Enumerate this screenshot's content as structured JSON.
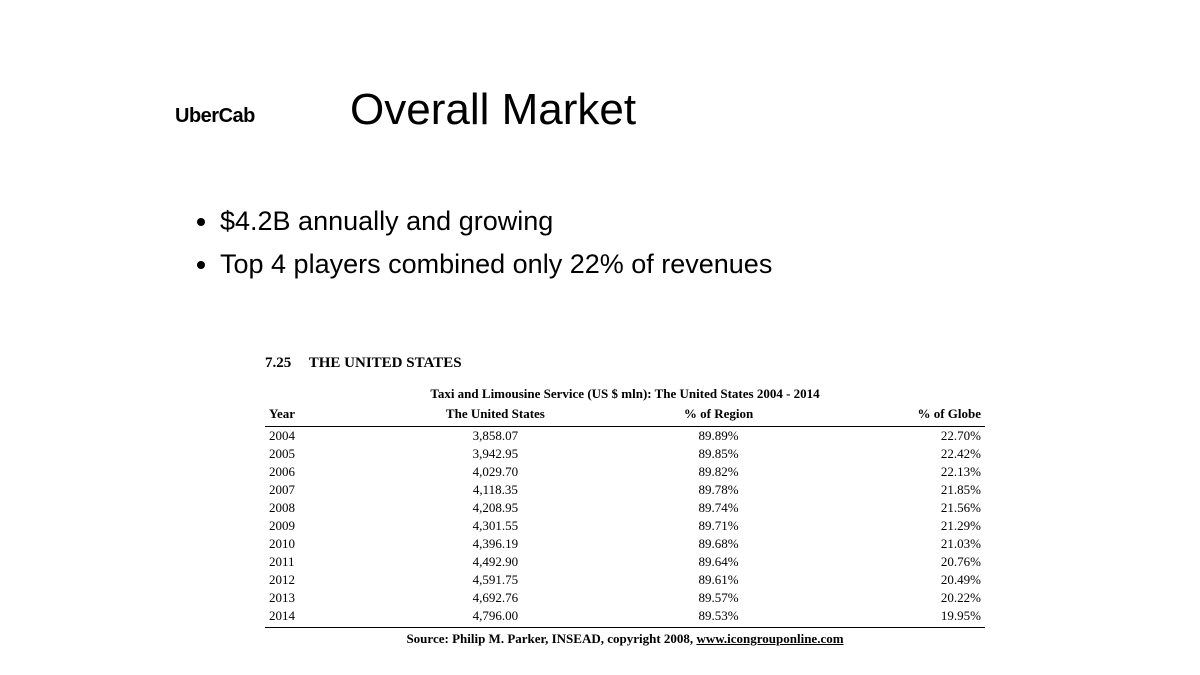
{
  "brand": "UberCab",
  "title": "Overall Market",
  "bullets": [
    "$4.2B annually and growing",
    "Top 4 players combined only 22% of revenues"
  ],
  "table": {
    "section_number": "7.25",
    "section_label": "THE UNITED STATES",
    "caption": "Taxi and Limousine Service (US $ mln): The United States 2004 - 2014",
    "columns": [
      "Year",
      "The United States",
      "% of Region",
      "% of Globe"
    ],
    "rows": [
      [
        "2004",
        "3,858.07",
        "89.89%",
        "22.70%"
      ],
      [
        "2005",
        "3,942.95",
        "89.85%",
        "22.42%"
      ],
      [
        "2006",
        "4,029.70",
        "89.82%",
        "22.13%"
      ],
      [
        "2007",
        "4,118.35",
        "89.78%",
        "21.85%"
      ],
      [
        "2008",
        "4,208.95",
        "89.74%",
        "21.56%"
      ],
      [
        "2009",
        "4,301.55",
        "89.71%",
        "21.29%"
      ],
      [
        "2010",
        "4,396.19",
        "89.68%",
        "21.03%"
      ],
      [
        "2011",
        "4,492.90",
        "89.64%",
        "20.76%"
      ],
      [
        "2012",
        "4,591.75",
        "89.61%",
        "20.49%"
      ],
      [
        "2013",
        "4,692.76",
        "89.57%",
        "20.22%"
      ],
      [
        "2014",
        "4,796.00",
        "89.53%",
        "19.95%"
      ]
    ],
    "source_prefix": "Source: Philip M. Parker, INSEAD, copyright 2008, ",
    "source_link": "www.icongrouponline.com"
  },
  "style": {
    "background_color": "#ffffff",
    "text_color": "#000000",
    "title_fontsize": 44,
    "bullet_fontsize": 27,
    "table_fontsize": 13,
    "brand_fontsize": 20,
    "caption_fontsize": 13,
    "font_family_body": "Arial",
    "font_family_table": "Times New Roman"
  }
}
